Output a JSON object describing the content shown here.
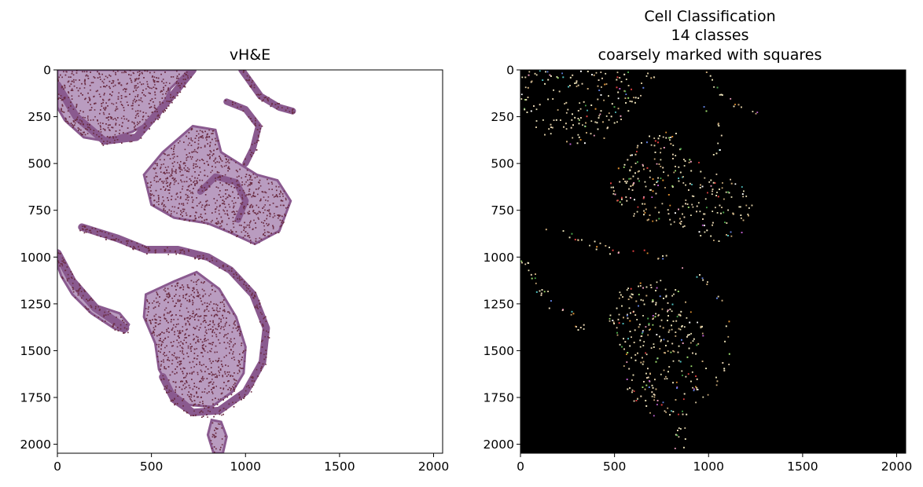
{
  "panels": [
    {
      "id": "he",
      "title_lines": [
        "vH&E"
      ],
      "xticks": [
        0,
        500,
        1000,
        1500,
        2000
      ],
      "yticks": [
        0,
        250,
        500,
        750,
        1000,
        1250,
        1500,
        1750,
        2000
      ],
      "xlim": [
        0,
        2048
      ],
      "ylim": [
        2048,
        0
      ],
      "background": "#ffffff",
      "tissue_colors": [
        "#b99cc0",
        "#8a5a8f",
        "#6b2d44"
      ]
    },
    {
      "id": "cells",
      "title_lines": [
        "Cell Classification",
        "14 classes",
        "coarsely marked with squares"
      ],
      "xticks": [
        0,
        500,
        1000,
        1500,
        2000
      ],
      "yticks": [
        0,
        250,
        500,
        750,
        1000,
        1250,
        1500,
        1750,
        2000
      ],
      "xlim": [
        0,
        2048
      ],
      "ylim": [
        2048,
        0
      ],
      "background": "#000000",
      "class_colors": [
        "#e8dfb5",
        "#f0e6c0",
        "#d9c7a0",
        "#c9a978",
        "#e6d2b0",
        "#e04040",
        "#4aa84a",
        "#6080e0",
        "#c060d0",
        "#e09030",
        "#50c0c0",
        "#f0a0c0",
        "#a0e070",
        "#ffffff"
      ]
    }
  ]
}
